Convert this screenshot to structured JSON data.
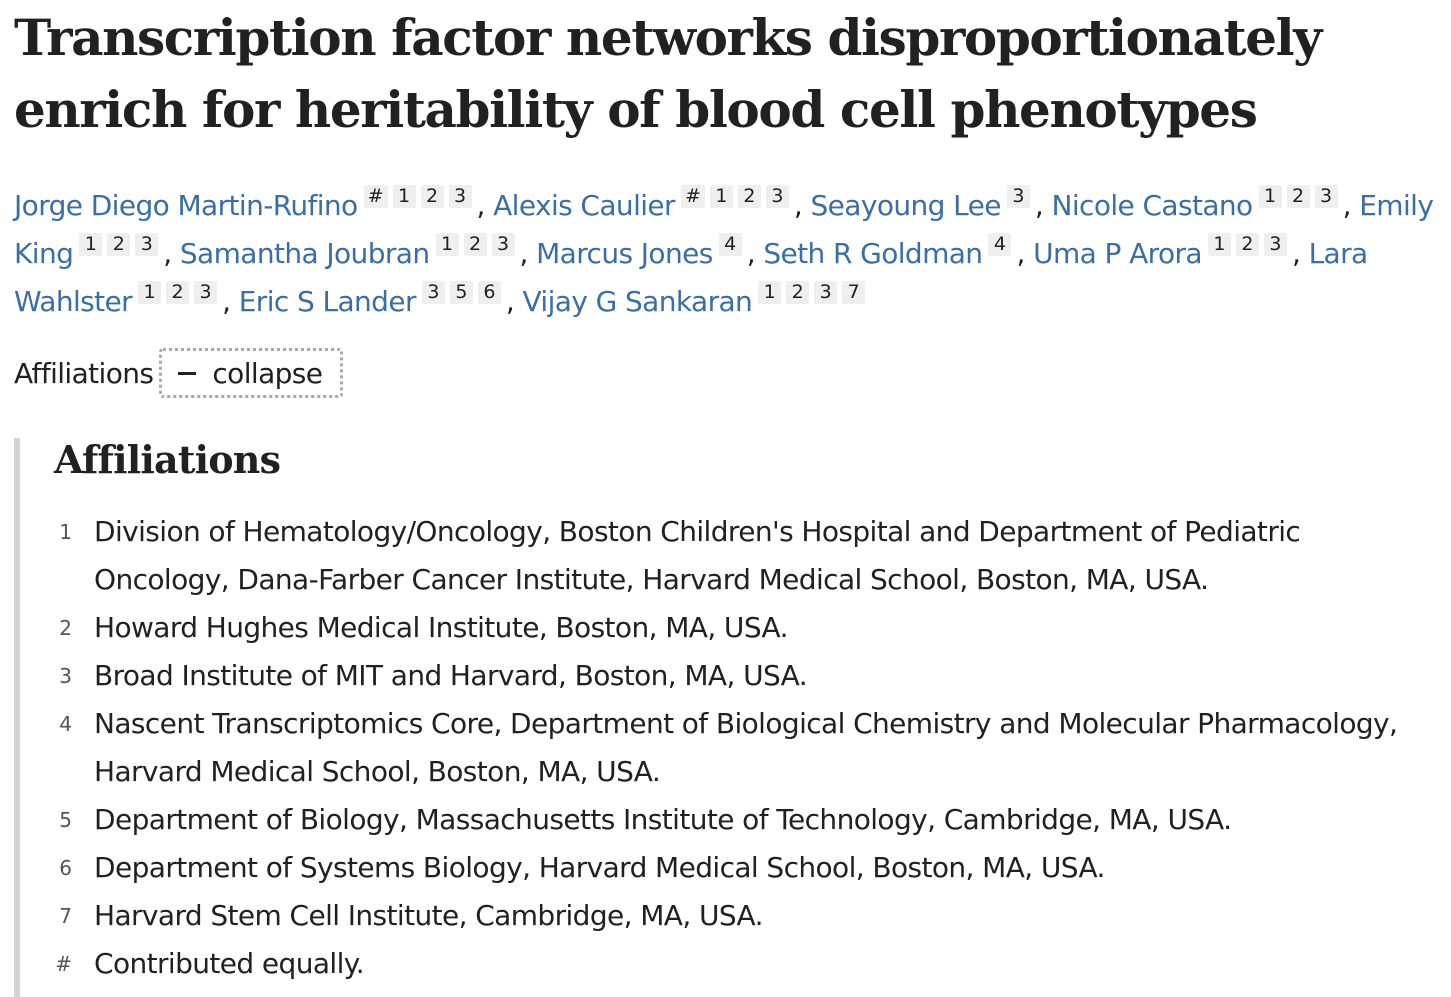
{
  "title": "Transcription factor networks disproportionately enrich for heritability of blood cell phenotypes",
  "authors": [
    {
      "name": "Jorge Diego Martin-Rufino",
      "affs": [
        "#",
        "1",
        "2",
        "3"
      ]
    },
    {
      "name": "Alexis Caulier",
      "affs": [
        "#",
        "1",
        "2",
        "3"
      ]
    },
    {
      "name": "Seayoung Lee",
      "affs": [
        "3"
      ]
    },
    {
      "name": "Nicole Castano",
      "affs": [
        "1",
        "2",
        "3"
      ]
    },
    {
      "name": "Emily King",
      "affs": [
        "1",
        "2",
        "3"
      ]
    },
    {
      "name": "Samantha Joubran",
      "affs": [
        "1",
        "2",
        "3"
      ]
    },
    {
      "name": "Marcus Jones",
      "affs": [
        "4"
      ]
    },
    {
      "name": "Seth R Goldman",
      "affs": [
        "4"
      ]
    },
    {
      "name": "Uma P Arora",
      "affs": [
        "1",
        "2",
        "3"
      ]
    },
    {
      "name": "Lara Wahlster",
      "affs": [
        "1",
        "2",
        "3"
      ]
    },
    {
      "name": "Eric S Lander",
      "affs": [
        "3",
        "5",
        "6"
      ]
    },
    {
      "name": "Vijay G Sankaran",
      "affs": [
        "1",
        "2",
        "3",
        "7"
      ]
    }
  ],
  "affiliations_toggle": {
    "label": "Affiliations",
    "button_label": "collapse"
  },
  "affiliations": {
    "heading": "Affiliations",
    "items": [
      {
        "num": "1",
        "text": "Division of Hematology/Oncology, Boston Children's Hospital and Department of Pediatric Oncology, Dana-Farber Cancer Institute, Harvard Medical School, Boston, MA, USA."
      },
      {
        "num": "2",
        "text": "Howard Hughes Medical Institute, Boston, MA, USA."
      },
      {
        "num": "3",
        "text": "Broad Institute of MIT and Harvard, Boston, MA, USA."
      },
      {
        "num": "4",
        "text": "Nascent Transcriptomics Core, Department of Biological Chemistry and Molecular Pharmacology, Harvard Medical School, Boston, MA, USA."
      },
      {
        "num": "5",
        "text": "Department of Biology, Massachusetts Institute of Technology, Cambridge, MA, USA."
      },
      {
        "num": "6",
        "text": "Department of Systems Biology, Harvard Medical School, Boston, MA, USA."
      },
      {
        "num": "7",
        "text": "Harvard Stem Cell Institute, Cambridge, MA, USA."
      },
      {
        "num": "#",
        "text": "Contributed equally."
      }
    ]
  },
  "colors": {
    "author_link": "#3a6ea5",
    "text": "#212121",
    "panel_border": "#d4d4d4",
    "sup_bg": "#efefef"
  }
}
